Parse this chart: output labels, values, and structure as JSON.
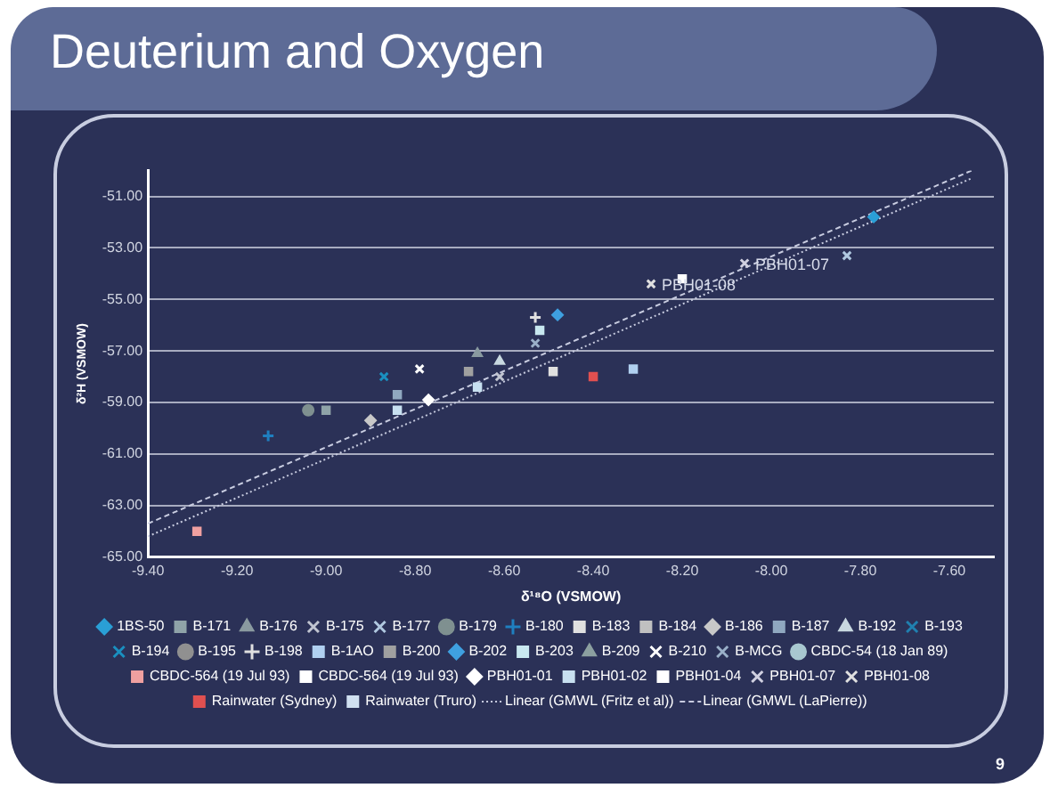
{
  "chart_data": {
    "type": "scatter",
    "title": "Deuterium and Oxygen",
    "xlabel": "δ¹⁸O (VSMOW)",
    "ylabel": "δ²H (VSMOW)",
    "xlim": [
      -9.4,
      -7.5
    ],
    "xticks": [
      {
        "value": -9.4,
        "label": "-9.40"
      },
      {
        "value": -9.2,
        "label": "-9.20"
      },
      {
        "value": -9,
        "label": "-9.00"
      },
      {
        "value": -8.8,
        "label": "-8.80"
      },
      {
        "value": -8.6,
        "label": "-8.60"
      },
      {
        "value": -8.4,
        "label": "-8.40"
      },
      {
        "value": -8.2,
        "label": "-8.20"
      },
      {
        "value": -8,
        "label": "-8.00"
      },
      {
        "value": -7.8,
        "label": "-7.80"
      },
      {
        "value": -7.6,
        "label": "-7.60"
      }
    ],
    "ylim": [
      -65,
      -50
    ],
    "yticks": [
      {
        "value": -65,
        "label": "-65.00"
      },
      {
        "value": -63,
        "label": "-63.00"
      },
      {
        "value": -61,
        "label": "-61.00"
      },
      {
        "value": -59,
        "label": "-59.00"
      },
      {
        "value": -57,
        "label": "-57.00"
      },
      {
        "value": -55,
        "label": "-55.00"
      },
      {
        "value": -53,
        "label": "-53.00"
      },
      {
        "value": -51,
        "label": "-51.00"
      }
    ],
    "grid": "y",
    "legend": "bottom",
    "annotations": [
      {
        "text": "PBH01-08",
        "x": -8.27,
        "y": -54.4
      },
      {
        "text": "PBH01-07",
        "x": -8.06,
        "y": -53.6
      },
      "9"
    ],
    "series": [
      {
        "name": "1BS-50",
        "color": "#2a9fd6",
        "marker": "diamond",
        "x": [
          -7.77
        ],
        "values": [
          -51.8
        ]
      },
      {
        "name": "B-171",
        "color": "#8fa3a8",
        "marker": "square",
        "x": [
          -9.0
        ],
        "values": [
          -59.3
        ]
      },
      {
        "name": "B-176",
        "color": "#8a9aa0",
        "marker": "triangle",
        "x": [
          -8.66
        ],
        "values": [
          -57.1
        ]
      },
      {
        "name": "B-175",
        "color": "#c0c4d0",
        "marker": "x",
        "x": [
          -8.61
        ],
        "values": [
          -58.0
        ]
      },
      {
        "name": "B-177",
        "color": "#b0c8e0",
        "marker": "x",
        "x": [
          -7.83
        ],
        "values": [
          -53.3
        ]
      },
      {
        "name": "B-179",
        "color": "#7f9090",
        "marker": "circle",
        "x": [
          -9.04
        ],
        "values": [
          -59.3
        ]
      },
      {
        "name": "B-180",
        "color": "#1f7fc0",
        "marker": "plus",
        "x": [
          -9.13
        ],
        "values": [
          -60.3
        ]
      },
      {
        "name": "B-183",
        "color": "#e0e0e0",
        "marker": "square",
        "x": [
          -8.49
        ],
        "values": [
          -57.8
        ]
      },
      {
        "name": "B-184",
        "color": "#c0c0c0",
        "marker": "square"
      },
      {
        "name": "B-186",
        "color": "#c8c8c8",
        "marker": "diamond",
        "x": [
          -8.9
        ],
        "values": [
          -59.7
        ]
      },
      {
        "name": "B-187",
        "color": "#90a8c0",
        "marker": "square",
        "x": [
          -8.84
        ],
        "values": [
          -58.7
        ]
      },
      {
        "name": "B-192",
        "color": "#c8d8e0",
        "marker": "triangle",
        "x": [
          -8.61
        ],
        "values": [
          -57.4
        ]
      },
      {
        "name": "B-193",
        "color": "#2080b0",
        "marker": "cross"
      },
      {
        "name": "B-194",
        "color": "#1a90c0",
        "marker": "x",
        "x": [
          -8.87
        ],
        "values": [
          -58.0
        ]
      },
      {
        "name": "B-195",
        "color": "#909090",
        "marker": "circle"
      },
      {
        "name": "B-198",
        "color": "#e0e0e0",
        "marker": "plus",
        "x": [
          -8.53
        ],
        "values": [
          -55.7
        ]
      },
      {
        "name": "B-1AO",
        "color": "#b0d0f0",
        "marker": "square",
        "x": [
          -8.31
        ],
        "values": [
          -57.7
        ]
      },
      {
        "name": "B-200",
        "color": "#a0a0a0",
        "marker": "square",
        "x": [
          -8.68
        ],
        "values": [
          -57.8
        ]
      },
      {
        "name": "B-202",
        "color": "#3fa0e0",
        "marker": "diamond",
        "x": [
          -8.48
        ],
        "values": [
          -55.6
        ]
      },
      {
        "name": "B-203",
        "color": "#c8e8f0",
        "marker": "square",
        "x": [
          -8.52
        ],
        "values": [
          -56.2
        ]
      },
      {
        "name": "B-209",
        "color": "#8ca0a0",
        "marker": "triangle"
      },
      {
        "name": "B-210",
        "color": "#ffffff",
        "marker": "x",
        "x": [
          -8.79
        ],
        "values": [
          -57.7
        ]
      },
      {
        "name": "B-MCG",
        "color": "#9ab0c8",
        "marker": "x",
        "x": [
          -8.53
        ],
        "values": [
          -56.7
        ]
      },
      {
        "name": "CBDC-54 (18 Jan 89)",
        "color": "#a8c8d0",
        "marker": "circle"
      },
      {
        "name": "CBDC-564 (19 Jul 93)",
        "color": "#f0a0a0",
        "marker": "square",
        "x": [
          -9.29
        ],
        "values": [
          -64.0
        ]
      },
      {
        "name": "CBDC-564 (19 Jul 93)",
        "color": "#ffffff",
        "marker": "square",
        "x": [
          -8.2
        ],
        "values": [
          -54.2
        ]
      },
      {
        "name": "PBH01-01",
        "color": "#ffffff",
        "marker": "diamond",
        "x": [
          -8.77
        ],
        "values": [
          -58.9
        ]
      },
      {
        "name": "PBH01-02",
        "color": "#c8e0f0",
        "marker": "square",
        "x": [
          -8.84,
          -8.66
        ],
        "values": [
          -59.3,
          -58.4
        ]
      },
      {
        "name": "PBH01-04",
        "color": "#ffffff",
        "marker": "square"
      },
      {
        "name": "PBH01-07",
        "color": "#d0d0e0",
        "marker": "x",
        "x": [
          -8.06
        ],
        "values": [
          -53.6
        ]
      },
      {
        "name": "PBH01-08",
        "color": "#e0e0e0",
        "marker": "x",
        "x": [
          -8.27
        ],
        "values": [
          -54.4
        ]
      },
      {
        "name": "Rainwater (Sydney)",
        "color": "#e05050",
        "marker": "square",
        "x": [
          -8.4
        ],
        "values": [
          -58.0
        ]
      },
      {
        "name": "Rainwater (Truro)",
        "color": "#d0e0f0",
        "marker": "square"
      },
      {
        "name": "Linear (GMWL (Fritz et al))",
        "type": "line",
        "color": "#c8cce0",
        "marker": "none",
        "line_style": "dotted",
        "x": [
          -9.4,
          -7.55
        ],
        "values": [
          -64.2,
          -50.3
        ]
      },
      {
        "name": "Linear (GMWL (LaPierre))",
        "type": "line",
        "color": "#c8cce0",
        "marker": "none",
        "line_style": "dashed",
        "x": [
          -9.4,
          -7.55
        ],
        "values": [
          -63.7,
          -50.0
        ]
      }
    ]
  }
}
